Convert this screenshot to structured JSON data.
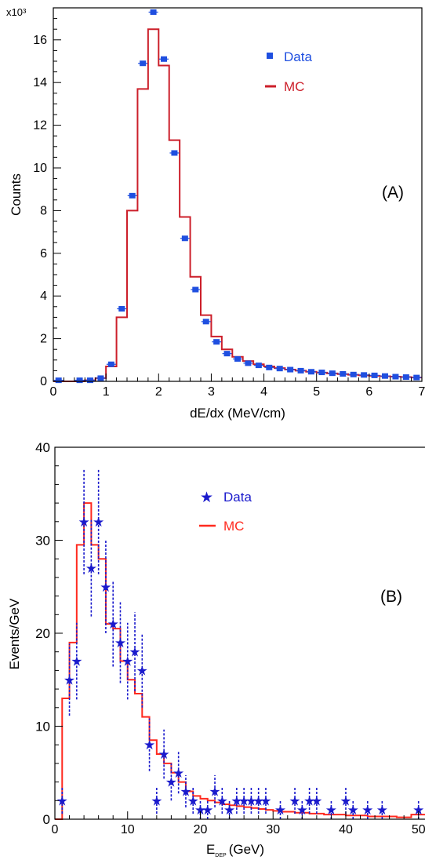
{
  "chart_data": [
    {
      "type": "histogram",
      "panel_label": "(A)",
      "xlabel": "dE/dx (MeV/cm)",
      "ylabel": "Counts",
      "y_multiplier": "x10³",
      "xlim": [
        0,
        7
      ],
      "ylim": [
        0,
        17.5
      ],
      "x_ticks": [
        0,
        1,
        2,
        3,
        4,
        5,
        6,
        7
      ],
      "y_ticks": [
        0,
        2,
        4,
        6,
        8,
        10,
        12,
        14,
        16
      ],
      "legend": [
        {
          "label": "Data",
          "marker": "square",
          "color": "#1f4fe0"
        },
        {
          "label": "MC",
          "marker": "line",
          "color": "#cc1f2a"
        }
      ],
      "series": [
        {
          "name": "Data",
          "style": "points",
          "x": [
            0.1,
            0.5,
            0.7,
            0.9,
            1.1,
            1.3,
            1.5,
            1.7,
            1.9,
            2.1,
            2.3,
            2.5,
            2.7,
            2.9,
            3.1,
            3.3,
            3.5,
            3.7,
            3.9,
            4.1,
            4.3,
            4.5,
            4.7,
            4.9,
            5.1,
            5.3,
            5.5,
            5.7,
            5.9,
            6.1,
            6.3,
            6.5,
            6.7,
            6.9
          ],
          "y": [
            0.05,
            0.05,
            0.05,
            0.15,
            0.8,
            3.4,
            8.7,
            14.9,
            17.3,
            15.1,
            10.7,
            6.7,
            4.3,
            2.8,
            1.85,
            1.3,
            1.05,
            0.85,
            0.75,
            0.65,
            0.6,
            0.55,
            0.5,
            0.45,
            0.42,
            0.38,
            0.35,
            0.32,
            0.3,
            0.28,
            0.25,
            0.22,
            0.2,
            0.18
          ]
        },
        {
          "name": "MC",
          "style": "step",
          "bin_edges": [
            0.0,
            0.2,
            0.4,
            0.6,
            0.8,
            1.0,
            1.2,
            1.4,
            1.6,
            1.8,
            2.0,
            2.2,
            2.4,
            2.6,
            2.8,
            3.0,
            3.2,
            3.4,
            3.6,
            3.8,
            4.0,
            4.2,
            4.4,
            4.6,
            4.8,
            5.0,
            5.2,
            5.4,
            5.6,
            5.8,
            6.0,
            6.2,
            6.4,
            6.6,
            6.8,
            7.0
          ],
          "values": [
            0.0,
            0.0,
            0.0,
            0.05,
            0.15,
            0.7,
            3.0,
            8.0,
            13.7,
            16.5,
            14.8,
            11.3,
            7.7,
            4.9,
            3.1,
            2.1,
            1.5,
            1.15,
            0.95,
            0.8,
            0.7,
            0.62,
            0.55,
            0.5,
            0.45,
            0.41,
            0.37,
            0.34,
            0.31,
            0.28,
            0.26,
            0.24,
            0.22,
            0.2,
            0.18
          ]
        }
      ]
    },
    {
      "type": "histogram",
      "panel_label": "(B)",
      "xlabel_main": "E",
      "xlabel_sub": "DEP",
      "xlabel_unit": "(GeV)",
      "ylabel": "Events/GeV",
      "xlim": [
        0,
        51
      ],
      "ylim": [
        0,
        40
      ],
      "x_ticks": [
        0,
        10,
        20,
        30,
        40,
        50
      ],
      "y_ticks": [
        0,
        10,
        20,
        30,
        40
      ],
      "legend": [
        {
          "label": "Data",
          "marker": "star",
          "color": "#1a1acc"
        },
        {
          "label": "MC",
          "marker": "line",
          "color": "#ff2a1f"
        }
      ],
      "series": [
        {
          "name": "Data",
          "style": "stars_with_errorbars",
          "x": [
            1,
            2,
            3,
            4,
            5,
            6,
            7,
            8,
            9,
            10,
            11,
            12,
            13,
            14,
            15,
            16,
            17,
            18,
            19,
            20,
            21,
            22,
            23,
            24,
            25,
            26,
            27,
            28,
            29,
            31,
            33,
            34,
            35,
            36,
            38,
            40,
            41,
            43,
            45,
            50
          ],
          "y": [
            2,
            15,
            17,
            32,
            27,
            32,
            25,
            21,
            19,
            17,
            18,
            16,
            8,
            2,
            7,
            4,
            5,
            3,
            2,
            1,
            1,
            3,
            2,
            1,
            2,
            2,
            2,
            2,
            2,
            1,
            2,
            1,
            2,
            2,
            1,
            2,
            1,
            1,
            1,
            1
          ]
        },
        {
          "name": "MC",
          "style": "step",
          "bin_edges": [
            0,
            1,
            2,
            3,
            4,
            5,
            6,
            7,
            8,
            9,
            10,
            11,
            12,
            13,
            14,
            15,
            16,
            17,
            18,
            19,
            20,
            21,
            22,
            23,
            24,
            25,
            26,
            27,
            28,
            29,
            30,
            31,
            32,
            33,
            34,
            35,
            36,
            37,
            38,
            39,
            40,
            41,
            42,
            43,
            44,
            45,
            46,
            47,
            48,
            49,
            50,
            51
          ],
          "values": [
            0,
            13,
            19,
            29.5,
            34,
            29.5,
            28,
            21,
            20.5,
            17,
            15,
            13.5,
            11,
            8.5,
            7,
            6,
            5,
            4,
            3,
            2.5,
            2.2,
            2.0,
            1.8,
            1.6,
            1.5,
            1.4,
            1.3,
            1.2,
            1.1,
            1.0,
            0.9,
            0.8,
            0.8,
            0.7,
            0.7,
            0.6,
            0.6,
            0.5,
            0.5,
            0.5,
            0.4,
            0.4,
            0.4,
            0.3,
            0.3,
            0.3,
            0.3,
            0.2,
            0.2,
            0.5,
            0.5
          ]
        }
      ]
    }
  ]
}
